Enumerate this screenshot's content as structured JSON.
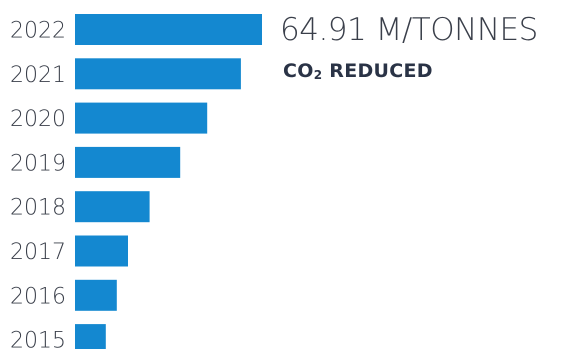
{
  "headline": {
    "value_text": "64.91 M/TONNES",
    "caption_prefix": "CO",
    "caption_subscript": "2",
    "caption_suffix": " REDUCED"
  },
  "colors": {
    "bar": "#1488d0",
    "text": "#3a3f4a",
    "caption": "#2a3346"
  },
  "chart_data": {
    "type": "bar",
    "orientation": "horizontal",
    "categories": [
      "2022",
      "2021",
      "2020",
      "2019",
      "2018",
      "2017",
      "2016",
      "2015"
    ],
    "values": [
      64.91,
      57.6,
      45.9,
      36.5,
      25.9,
      18.4,
      14.5,
      10.7
    ],
    "title": "",
    "xlabel": "",
    "ylabel": "",
    "xlim": [
      0,
      64.91
    ],
    "grid": false,
    "legend": "none"
  }
}
